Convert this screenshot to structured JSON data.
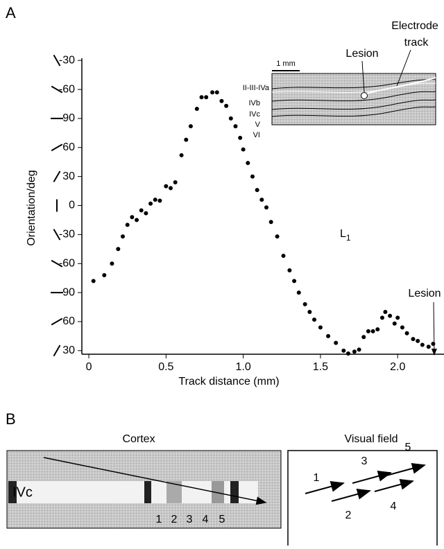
{
  "chart_data": {
    "type": "scatter",
    "panel_label": "A",
    "ylabel": "Orientation/deg",
    "xlabel": "Track distance (mm)",
    "annotation_main": "L",
    "annotation_sub": "1",
    "lesion_label": "Lesion",
    "color": "#000000",
    "xlim": [
      -0.045,
      2.3
    ],
    "xticks": [
      0,
      0.5,
      {
        "value": 1,
        "label": "1.0"
      },
      1.5,
      {
        "value": 2,
        "label": "2.0"
      }
    ],
    "ylim": [
      27,
      333
    ],
    "yticks": [
      30,
      60,
      90,
      {
        "value": 120,
        "label": "-60"
      },
      {
        "value": 150,
        "label": "-30"
      },
      {
        "value": 180,
        "label": "0"
      },
      {
        "value": 210,
        "label": "30"
      },
      {
        "value": 240,
        "label": "60"
      },
      {
        "value": 270,
        "label": "90"
      },
      {
        "value": 300,
        "label": "-60"
      },
      {
        "value": 330,
        "label": "-30"
      }
    ],
    "x": [
      0.03,
      0.1,
      0.15,
      0.19,
      0.22,
      0.25,
      0.28,
      0.31,
      0.34,
      0.37,
      0.4,
      0.43,
      0.46,
      0.5,
      0.53,
      0.56,
      0.6,
      0.63,
      0.66,
      0.7,
      0.73,
      0.76,
      0.8,
      0.83,
      0.86,
      0.89,
      0.92,
      0.95,
      0.98,
      1.0,
      1.03,
      1.06,
      1.09,
      1.12,
      1.15,
      1.18,
      1.22,
      1.26,
      1.3,
      1.33,
      1.36,
      1.4,
      1.43,
      1.46,
      1.5,
      1.55,
      1.6,
      1.65,
      1.68,
      1.72,
      1.75,
      1.78,
      1.81,
      1.84,
      1.87,
      1.9,
      1.92,
      1.95,
      1.98,
      2.0,
      2.03,
      2.06,
      2.1,
      2.13,
      2.16,
      2.2,
      2.23
    ],
    "values": [
      102,
      108,
      120,
      135,
      148,
      160,
      168,
      165,
      175,
      172,
      182,
      186,
      185,
      200,
      198,
      204,
      232,
      248,
      262,
      280,
      292,
      292,
      297,
      297,
      288,
      283,
      270,
      262,
      250,
      238,
      224,
      210,
      196,
      186,
      178,
      163,
      148,
      128,
      113,
      102,
      90,
      78,
      70,
      62,
      54,
      45,
      38,
      30,
      27,
      29,
      31,
      44,
      50,
      50,
      52,
      64,
      70,
      66,
      58,
      64,
      54,
      48,
      42,
      40,
      36,
      34,
      37
    ]
  },
  "inset": {
    "scale": "1 mm",
    "lesion": "Lesion",
    "track_1": "Electrode",
    "track_2": "track",
    "layers": [
      "II-III-IVa",
      "IVb",
      "IVc",
      "V",
      "VI"
    ]
  },
  "panel_b": {
    "label": "B",
    "cortex_title": "Cortex",
    "field_title": "Visual field",
    "layer": "IVc",
    "cortex_numbers": [
      "1",
      "2",
      "3",
      "4",
      "5"
    ],
    "field_numbers": [
      "1",
      "2",
      "3",
      "4",
      "5"
    ]
  }
}
